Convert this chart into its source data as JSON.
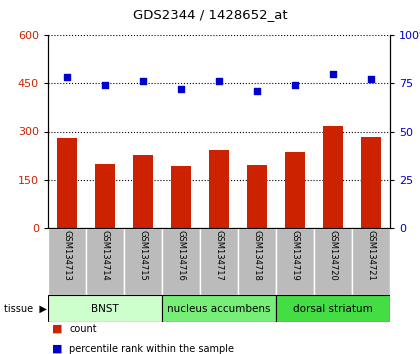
{
  "title": "GDS2344 / 1428652_at",
  "samples": [
    "GSM134713",
    "GSM134714",
    "GSM134715",
    "GSM134716",
    "GSM134717",
    "GSM134718",
    "GSM134719",
    "GSM134720",
    "GSM134721"
  ],
  "counts": [
    280,
    200,
    228,
    193,
    243,
    196,
    236,
    318,
    283
  ],
  "percentiles": [
    78,
    74,
    76,
    72,
    76,
    71,
    74,
    80,
    77
  ],
  "left_ylim": [
    0,
    600
  ],
  "right_ylim": [
    0,
    100
  ],
  "left_yticks": [
    0,
    150,
    300,
    450,
    600
  ],
  "right_yticks": [
    0,
    25,
    50,
    75,
    100
  ],
  "bar_color": "#cc2200",
  "dot_color": "#0000cc",
  "tissue_groups": [
    {
      "label": "BNST",
      "start": 0,
      "end": 3,
      "color": "#ccffcc"
    },
    {
      "label": "nucleus accumbens",
      "start": 3,
      "end": 6,
      "color": "#77ee77"
    },
    {
      "label": "dorsal striatum",
      "start": 6,
      "end": 9,
      "color": "#44dd44"
    }
  ],
  "tissue_label": "tissue",
  "legend_count_label": "count",
  "legend_pct_label": "percentile rank within the sample",
  "bg_color": "#ffffff",
  "tick_label_area_color": "#bbbbbb"
}
